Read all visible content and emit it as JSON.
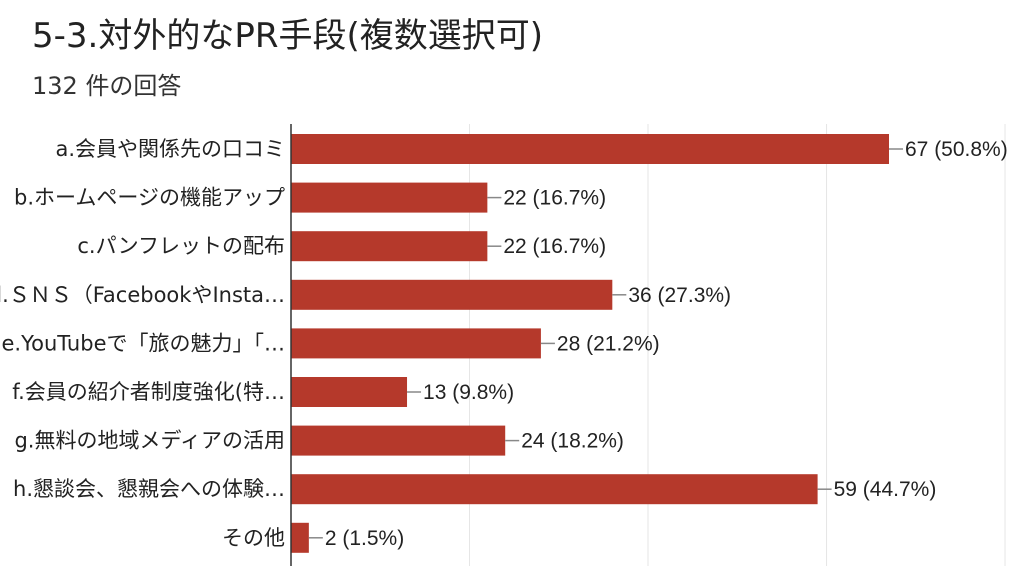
{
  "header": {
    "title": "5-3.対外的なPR手段(複数選択可)",
    "response_count": "132 件の回答"
  },
  "colors": {
    "bar": "#b5392b",
    "grid": "#e6e6e6",
    "axis": "#333333",
    "text": "#222222"
  },
  "chart_data": {
    "type": "bar",
    "orientation": "horizontal",
    "categories": [
      "a.会員や関係先の口コミ",
      "b.ホームページの機能アップ",
      "c.パンフレットの配布",
      "d.ＳＮＳ（FacebookやInsta…",
      "e.YouTubeで「旅の魅力」「…",
      "f.会員の紹介者制度強化(特…",
      "g.無料の地域メディアの活用",
      "h.懇談会、懇親会への体験…",
      "その他"
    ],
    "values": [
      67,
      22,
      22,
      36,
      28,
      13,
      24,
      59,
      2
    ],
    "value_labels": [
      "67 (50.8%)",
      "22 (16.7%)",
      "22 (16.7%)",
      "36 (27.3%)",
      "28 (21.2%)",
      "13 (9.8%)",
      "24 (18.2%)",
      "59 (44.7%)",
      "2 (1.5%)"
    ],
    "xlim": [
      0,
      80
    ],
    "grid": true
  }
}
